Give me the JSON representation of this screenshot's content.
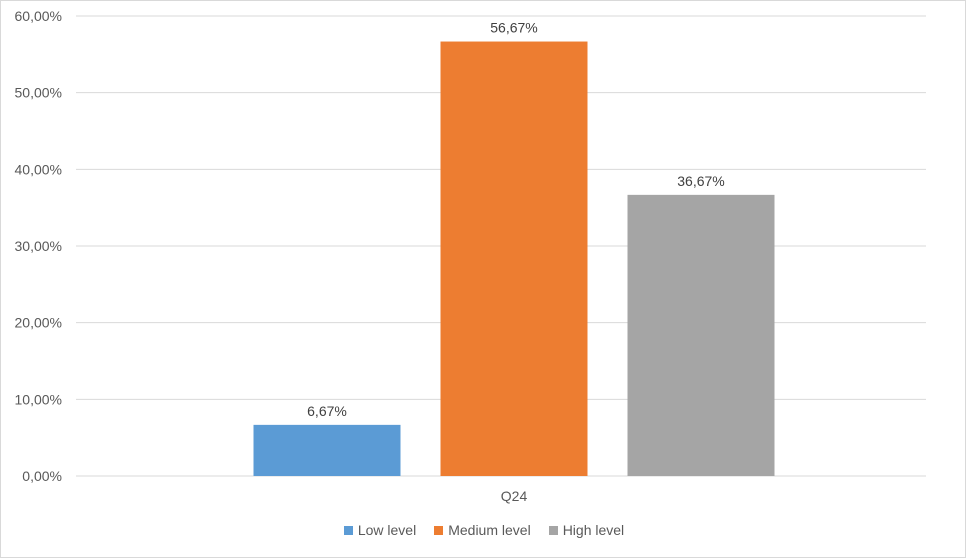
{
  "chart_data": {
    "type": "bar",
    "categories": [
      "Q24"
    ],
    "series": [
      {
        "name": "Low level",
        "values": [
          6.67
        ],
        "label": "6,67%",
        "color": "#5b9bd5"
      },
      {
        "name": "Medium level",
        "values": [
          56.67
        ],
        "label": "56,67%",
        "color": "#ed7d31"
      },
      {
        "name": "High level",
        "values": [
          36.67
        ],
        "label": "36,67%",
        "color": "#a5a5a5"
      }
    ],
    "ylim": [
      0,
      60
    ],
    "yticks": [
      {
        "value": 0,
        "label": "0,00%"
      },
      {
        "value": 10,
        "label": "10,00%"
      },
      {
        "value": 20,
        "label": "20,00%"
      },
      {
        "value": 30,
        "label": "30,00%"
      },
      {
        "value": 40,
        "label": "40,00%"
      },
      {
        "value": 50,
        "label": "50,00%"
      },
      {
        "value": 60,
        "label": "60,00%"
      }
    ],
    "grid": true,
    "legend_position": "bottom",
    "gridline_color": "#d9d9d9"
  }
}
